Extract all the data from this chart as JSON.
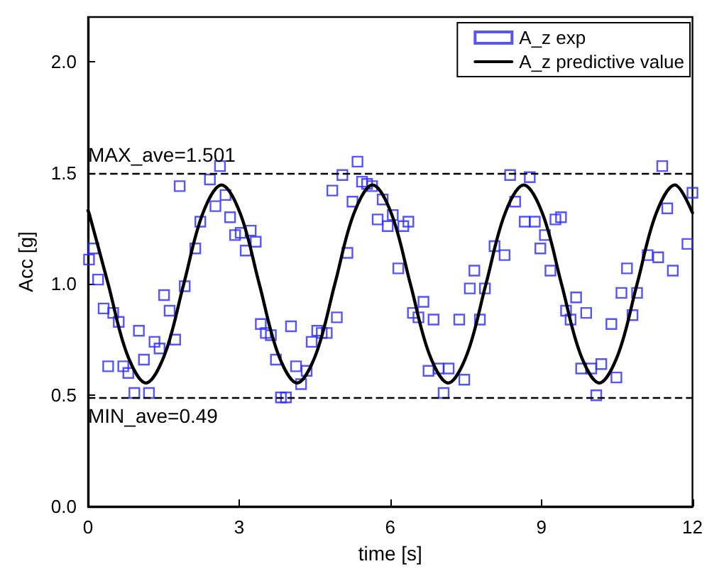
{
  "chart_data": {
    "type": "scatter",
    "xlabel": "time [s]",
    "ylabel": "Acc [g]",
    "xlim": [
      0,
      12
    ],
    "xticks": [
      0,
      3,
      6,
      9,
      12
    ],
    "ylim": [
      0,
      2.2
    ],
    "yticks": [
      {
        "value": 0,
        "label": "0.0"
      },
      {
        "value": 0.5,
        "label": "0.5"
      },
      {
        "value": 1,
        "label": "1.0"
      },
      {
        "value": 1.5,
        "label": "1.5"
      },
      {
        "value": 2,
        "label": "2.0"
      }
    ],
    "grid": false,
    "legend": "top right",
    "ref_lines": [
      {
        "axis": "y",
        "value": 1.501,
        "label": "MAX_ave=1.501",
        "color": "#000000",
        "line_style": "dashed"
      },
      {
        "axis": "y",
        "value": 0.49,
        "label": "MIN_ave=0.49",
        "color": "#000000",
        "line_style": "dashed"
      }
    ],
    "series": [
      {
        "name": "A_z exp",
        "color": "#2a2aff",
        "marker": "square",
        "x": [
          0.02,
          0.11,
          0.2,
          0.31,
          0.4,
          0.5,
          0.61,
          0.7,
          0.8,
          0.92,
          1.01,
          1.11,
          1.21,
          1.32,
          1.42,
          1.51,
          1.62,
          1.73,
          1.82,
          1.92,
          2.13,
          2.23,
          2.42,
          2.53,
          2.62,
          2.73,
          2.82,
          2.92,
          3.03,
          3.13,
          3.23,
          3.33,
          3.43,
          3.53,
          3.63,
          3.73,
          3.83,
          3.93,
          4.03,
          4.13,
          4.23,
          4.34,
          4.44,
          4.55,
          4.64,
          4.74,
          4.85,
          4.94,
          5.05,
          5.15,
          5.25,
          5.35,
          5.44,
          5.54,
          5.64,
          5.75,
          5.85,
          5.95,
          6.05,
          6.16,
          6.26,
          6.36,
          6.45,
          6.56,
          6.66,
          6.76,
          6.86,
          6.96,
          7.06,
          7.16,
          7.37,
          7.47,
          7.58,
          7.67,
          7.78,
          7.88,
          8.07,
          8.27,
          8.38,
          8.48,
          8.67,
          8.77,
          8.87,
          8.98,
          9.07,
          9.18,
          9.28,
          9.39,
          9.49,
          9.58,
          9.69,
          9.79,
          9.89,
          9.99,
          10.09,
          10.19,
          10.39,
          10.49,
          10.59,
          10.7,
          10.81,
          10.9,
          11.11,
          11.32,
          11.4,
          11.5,
          11.61,
          11.9,
          12.0
        ],
        "values": [
          1.11,
          1.16,
          1.02,
          0.89,
          0.63,
          0.87,
          0.83,
          0.63,
          0.6,
          0.51,
          0.79,
          0.66,
          0.51,
          0.74,
          0.71,
          0.95,
          0.88,
          0.75,
          1.44,
          0.99,
          1.16,
          1.28,
          1.47,
          1.35,
          1.53,
          1.4,
          1.3,
          1.22,
          1.23,
          1.15,
          1.24,
          1.19,
          0.82,
          0.78,
          0.77,
          0.66,
          0.49,
          0.49,
          0.81,
          0.63,
          0.55,
          0.61,
          0.74,
          0.79,
          0.78,
          0.78,
          1.42,
          0.85,
          1.49,
          1.14,
          1.37,
          1.55,
          1.46,
          1.45,
          1.44,
          1.29,
          1.38,
          1.26,
          1.31,
          1.07,
          1.26,
          1.28,
          0.87,
          0.85,
          0.92,
          0.61,
          0.84,
          0.62,
          0.51,
          0.62,
          0.84,
          0.57,
          0.98,
          1.06,
          0.84,
          0.98,
          1.17,
          1.13,
          1.49,
          1.37,
          1.28,
          1.48,
          1.28,
          1.16,
          1.22,
          1.06,
          1.29,
          1.3,
          0.88,
          0.84,
          0.94,
          0.62,
          0.87,
          0.62,
          0.5,
          0.64,
          0.82,
          0.58,
          0.96,
          1.07,
          0.86,
          0.96,
          1.13,
          1.12,
          1.53,
          1.34,
          1.06,
          1.18,
          1.41
        ]
      },
      {
        "name": "A_z predictive value",
        "type": "line",
        "color": "#000000",
        "marker": "none",
        "line_style": "solid",
        "x": [
          0,
          0.025,
          0.4,
          0.775,
          1.15,
          1.525,
          1.9,
          2.275,
          2.65,
          3.025,
          3.4,
          3.775,
          4.15,
          4.525,
          4.9,
          5.275,
          5.65,
          6.025,
          6.4,
          6.775,
          7.15,
          7.525,
          7.9,
          8.275,
          8.65,
          9.025,
          9.4,
          9.775,
          10.15,
          10.525,
          10.9,
          11.275,
          11.65,
          12
        ],
        "values": [
          1.33,
          1.315,
          1.0,
          0.685,
          0.555,
          0.685,
          1.0,
          1.315,
          1.445,
          1.315,
          1.0,
          0.685,
          0.555,
          0.685,
          1.0,
          1.315,
          1.445,
          1.315,
          1.0,
          0.685,
          0.555,
          0.685,
          1.0,
          1.315,
          1.445,
          1.315,
          1.0,
          0.685,
          0.555,
          0.685,
          1.0,
          1.315,
          1.445,
          1.32
        ]
      }
    ]
  }
}
